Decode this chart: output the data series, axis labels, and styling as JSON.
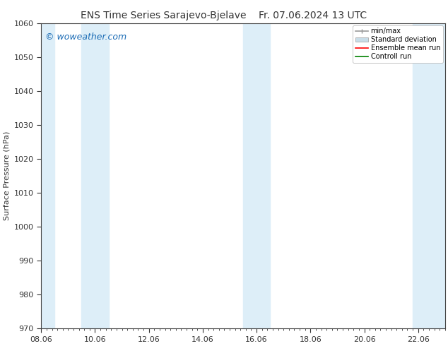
{
  "title_left": "ENS Time Series Sarajevo-Bjelave",
  "title_right": "Fr. 07.06.2024 13 UTC",
  "ylabel": "Surface Pressure (hPa)",
  "ylim": [
    970,
    1060
  ],
  "yticks": [
    970,
    980,
    990,
    1000,
    1010,
    1020,
    1030,
    1040,
    1050,
    1060
  ],
  "xlim_start": 0.0,
  "xlim_end": 15.0,
  "xtick_labels": [
    "08.06",
    "10.06",
    "12.06",
    "14.06",
    "16.06",
    "18.06",
    "20.06",
    "22.06"
  ],
  "xtick_positions": [
    0.0,
    2.0,
    4.0,
    6.0,
    8.0,
    10.0,
    12.0,
    14.0
  ],
  "shaded_bands": [
    {
      "x_start": -0.1,
      "x_end": 0.5
    },
    {
      "x_start": 1.5,
      "x_end": 2.5
    },
    {
      "x_start": 7.5,
      "x_end": 8.5
    },
    {
      "x_start": 13.8,
      "x_end": 15.1
    }
  ],
  "shade_color": "#ddeef8",
  "watermark_text": "© woweather.com",
  "watermark_color": "#1a6bb5",
  "background_color": "#ffffff",
  "legend_minmax_color": "#999999",
  "legend_std_facecolor": "#c8dde8",
  "legend_std_edgecolor": "#aaaaaa",
  "legend_ens_color": "red",
  "legend_ctrl_color": "green",
  "legend_fontsize": 7.0,
  "tick_color": "#333333",
  "spine_color": "#444444",
  "title_fontsize": 10,
  "ylabel_fontsize": 8,
  "tick_labelsize": 8,
  "watermark_fontsize": 9
}
